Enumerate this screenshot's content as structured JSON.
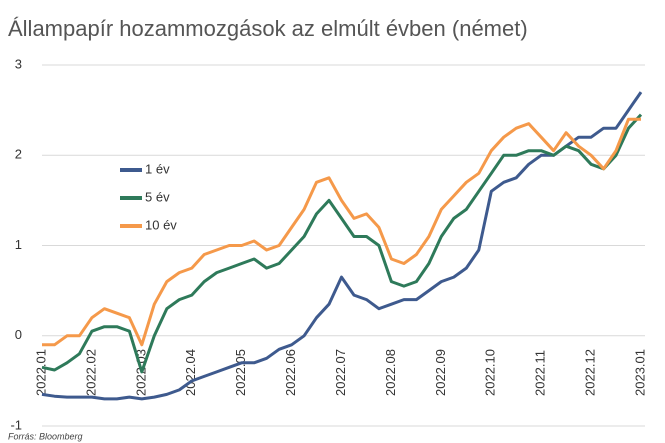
{
  "chart_data": {
    "type": "line",
    "title": "Állampapír hozammozgások az elmúlt évben (német)",
    "source": "Forrás: Bloomberg",
    "categories": [
      "2022.01",
      null,
      null,
      null,
      "2022.02",
      null,
      null,
      null,
      "2022.03",
      null,
      null,
      null,
      "2022.04",
      null,
      null,
      null,
      "2022.05",
      null,
      null,
      null,
      "2022.06",
      null,
      null,
      null,
      "2022.07",
      null,
      null,
      null,
      "2022.08",
      null,
      null,
      null,
      "2022.09",
      null,
      null,
      null,
      "2022.10",
      null,
      null,
      null,
      "2022.11",
      null,
      null,
      null,
      "2022.12",
      null,
      null,
      null,
      "2023.01"
    ],
    "series": [
      {
        "name": "1 év",
        "color": "#3e5a8e",
        "values": [
          -0.65,
          -0.67,
          -0.68,
          -0.68,
          -0.68,
          -0.7,
          -0.7,
          -0.68,
          -0.7,
          -0.68,
          -0.65,
          -0.6,
          -0.5,
          -0.45,
          -0.4,
          -0.35,
          -0.3,
          -0.3,
          -0.25,
          -0.15,
          -0.1,
          0.0,
          0.2,
          0.35,
          0.65,
          0.45,
          0.4,
          0.3,
          0.35,
          0.4,
          0.4,
          0.5,
          0.6,
          0.65,
          0.75,
          0.95,
          1.6,
          1.7,
          1.75,
          1.9,
          2.0,
          2.0,
          2.1,
          2.2,
          2.2,
          2.3,
          2.3,
          2.5,
          2.7
        ]
      },
      {
        "name": "5 év",
        "color": "#2e7a5a",
        "values": [
          -0.35,
          -0.38,
          -0.3,
          -0.2,
          0.05,
          0.1,
          0.1,
          0.05,
          -0.4,
          0.0,
          0.3,
          0.4,
          0.45,
          0.6,
          0.7,
          0.75,
          0.8,
          0.85,
          0.75,
          0.8,
          0.95,
          1.1,
          1.35,
          1.5,
          1.3,
          1.1,
          1.1,
          1.0,
          0.6,
          0.55,
          0.6,
          0.8,
          1.1,
          1.3,
          1.4,
          1.6,
          1.8,
          2.0,
          2.0,
          2.05,
          2.05,
          2.0,
          2.1,
          2.05,
          1.9,
          1.85,
          2.0,
          2.3,
          2.45
        ]
      },
      {
        "name": "10 év",
        "color": "#f5994a",
        "values": [
          -0.1,
          -0.1,
          0.0,
          0.0,
          0.2,
          0.3,
          0.25,
          0.2,
          -0.1,
          0.35,
          0.6,
          0.7,
          0.75,
          0.9,
          0.95,
          1.0,
          1.0,
          1.05,
          0.95,
          1.0,
          1.2,
          1.4,
          1.7,
          1.75,
          1.5,
          1.3,
          1.35,
          1.2,
          0.85,
          0.8,
          0.9,
          1.1,
          1.4,
          1.55,
          1.7,
          1.8,
          2.05,
          2.2,
          2.3,
          2.35,
          2.2,
          2.05,
          2.25,
          2.1,
          2.0,
          1.85,
          2.05,
          2.4,
          2.4
        ]
      }
    ],
    "ylim": [
      -1,
      3
    ],
    "yticks": [
      -1,
      0,
      1,
      2,
      3
    ],
    "grid": true
  }
}
